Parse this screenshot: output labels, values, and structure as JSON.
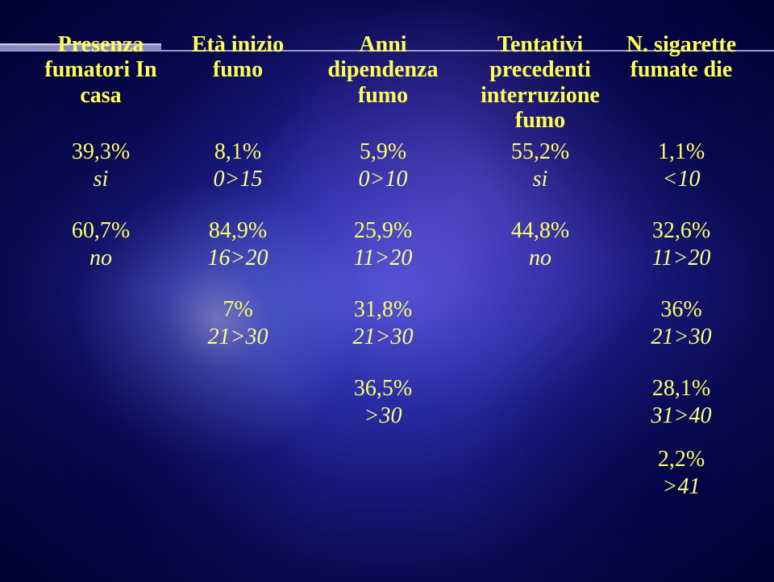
{
  "columns": [
    {
      "header": "Presenza fumatori In casa"
    },
    {
      "header": "Età inizio fumo"
    },
    {
      "header": "Anni dipendenza fumo"
    },
    {
      "header": "Tentativi precedenti interruzione fumo"
    },
    {
      "header": "N. sigarette fumate die"
    }
  ],
  "rows": [
    [
      {
        "value": "39,3%",
        "sub": "si"
      },
      {
        "value": "8,1%",
        "sub": "0>15"
      },
      {
        "value": "5,9%",
        "sub": "0>10"
      },
      {
        "value": "55,2%",
        "sub": "si"
      },
      {
        "value": "1,1%",
        "sub": "<10"
      }
    ],
    [
      {
        "value": "60,7%",
        "sub": "no"
      },
      {
        "value": "84,9%",
        "sub": "16>20"
      },
      {
        "value": "25,9%",
        "sub": "11>20"
      },
      {
        "value": "44,8%",
        "sub": "no"
      },
      {
        "value": "32,6%",
        "sub": "11>20"
      }
    ],
    [
      null,
      {
        "value": "7%",
        "sub": "21>30"
      },
      {
        "value": "31,8%",
        "sub": "21>30"
      },
      null,
      {
        "value": "36%",
        "sub": "21>30"
      }
    ],
    [
      null,
      null,
      {
        "value": "36,5%",
        "sub": ">30"
      },
      null,
      {
        "value": "28,1%",
        "sub": "31>40"
      }
    ],
    [
      null,
      null,
      null,
      null,
      {
        "value": "2,2%",
        "sub": ">41"
      }
    ]
  ],
  "style": {
    "text_color": "#ffff66",
    "italic_color": "#ffff88",
    "header_color": "#ffff55",
    "header_fontsize_pt": 21,
    "value_fontsize_pt": 21,
    "background_gradient_center": "#4a4fd0",
    "background_gradient_edge": "#020230",
    "rule_color": "#9a9ad0",
    "font_family": "Times New Roman"
  }
}
